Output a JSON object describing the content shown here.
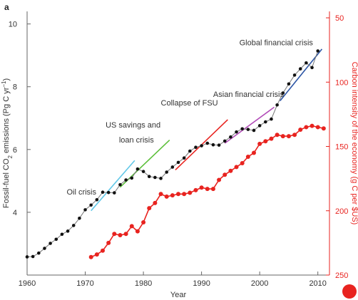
{
  "chart_data": {
    "type": "line",
    "panel_label": "a",
    "xlabel": "Year",
    "ylabel_left": "Fossil-fuel CO2 emissions (Pg C yr-1)",
    "ylabel_right": "Carbon intensity of the economy (g C per $US)",
    "xlim": [
      1960,
      2012
    ],
    "ylim_left": [
      2.0,
      10.4
    ],
    "ylim_right_inverted": [
      250,
      45
    ],
    "x_ticks": [
      "1960",
      "1970",
      "1980",
      "1990",
      "2000",
      "2010"
    ],
    "y_ticks_left": [
      "4",
      "6",
      "8",
      "10"
    ],
    "y_ticks_right": [
      "50",
      "100",
      "150",
      "200",
      "250"
    ],
    "series": [
      {
        "name": "Fossil-fuel CO2 emissions",
        "axis": "left",
        "color": "#111111",
        "x": [
          1960,
          1961,
          1962,
          1963,
          1964,
          1965,
          1966,
          1967,
          1968,
          1969,
          1970,
          1971,
          1972,
          1973,
          1974,
          1975,
          1976,
          1977,
          1978,
          1979,
          1980,
          1981,
          1982,
          1983,
          1984,
          1985,
          1986,
          1987,
          1988,
          1989,
          1990,
          1991,
          1992,
          1993,
          1994,
          1995,
          1996,
          1997,
          1998,
          1999,
          2000,
          2001,
          2002,
          2003,
          2004,
          2005,
          2006,
          2007,
          2008,
          2009,
          2010
        ],
        "y": [
          2.58,
          2.59,
          2.7,
          2.85,
          3.01,
          3.14,
          3.3,
          3.4,
          3.58,
          3.81,
          4.08,
          4.23,
          4.4,
          4.64,
          4.63,
          4.62,
          4.88,
          5.03,
          5.09,
          5.38,
          5.3,
          5.14,
          5.11,
          5.08,
          5.28,
          5.44,
          5.59,
          5.73,
          5.95,
          6.07,
          6.12,
          6.2,
          6.15,
          6.14,
          6.27,
          6.4,
          6.56,
          6.66,
          6.64,
          6.61,
          6.76,
          6.88,
          6.97,
          7.42,
          7.8,
          8.09,
          8.37,
          8.57,
          8.76,
          8.61,
          9.14
        ]
      },
      {
        "name": "Carbon intensity of the economy",
        "axis": "right",
        "color": "#e8231f",
        "x": [
          1971,
          1972,
          1973,
          1974,
          1975,
          1976,
          1977,
          1978,
          1979,
          1980,
          1981,
          1982,
          1983,
          1984,
          1985,
          1986,
          1987,
          1988,
          1989,
          1990,
          1991,
          1992,
          1993,
          1994,
          1995,
          1996,
          1997,
          1998,
          1999,
          2000,
          2001,
          2002,
          2003,
          2004,
          2005,
          2006,
          2007,
          2008,
          2009,
          2010,
          2011
        ],
        "y": [
          236,
          234,
          231,
          225,
          218,
          219,
          218,
          212,
          216,
          209,
          198,
          194,
          187,
          189,
          188,
          187,
          187,
          186,
          184,
          182,
          183,
          183,
          176,
          172,
          169,
          166,
          163,
          158,
          155,
          148,
          146,
          144,
          141,
          142,
          142,
          141,
          137,
          135,
          134,
          135,
          136
        ]
      }
    ],
    "trend_segments": [
      {
        "label": "Oil crisis",
        "color": "#62c8e8",
        "x": [
          1971,
          1978.5
        ],
        "y": [
          4.05,
          5.65
        ]
      },
      {
        "label": "US savings and loan crisis",
        "color": "#5cbf3a",
        "x": [
          1976,
          1984.5
        ],
        "y": [
          4.8,
          6.3
        ]
      },
      {
        "label": "Collapse of FSU",
        "color": "#e8231f",
        "x": [
          1985.5,
          1994.5
        ],
        "y": [
          5.35,
          6.95
        ]
      },
      {
        "label": "Asian financial crisis",
        "color": "#b24bb8",
        "x": [
          1994,
          2002.5
        ],
        "y": [
          6.2,
          7.35
        ]
      },
      {
        "label": "Global financial crisis",
        "color": "#2c55a5",
        "x": [
          2003.5,
          2010.7
        ],
        "y": [
          7.55,
          9.2
        ]
      }
    ],
    "annotations": [
      {
        "text": "Oil crisis",
        "x": 1966.8,
        "y": 4.56
      },
      {
        "text": "US savings and",
        "x": 1973.5,
        "y": 6.7
      },
      {
        "text": "loan crisis",
        "x": 1975.8,
        "y": 6.22
      },
      {
        "text": "Collapse of FSU",
        "x": 1983.0,
        "y": 7.4
      },
      {
        "text": "Asian financial crisis",
        "x": 1992.0,
        "y": 7.68
      },
      {
        "text": "Global financial crisis",
        "x": 1996.5,
        "y": 9.32
      }
    ],
    "grid": false,
    "legend": "none",
    "note": "Right axis is inverted (50 at top, 250 at bottom)."
  }
}
